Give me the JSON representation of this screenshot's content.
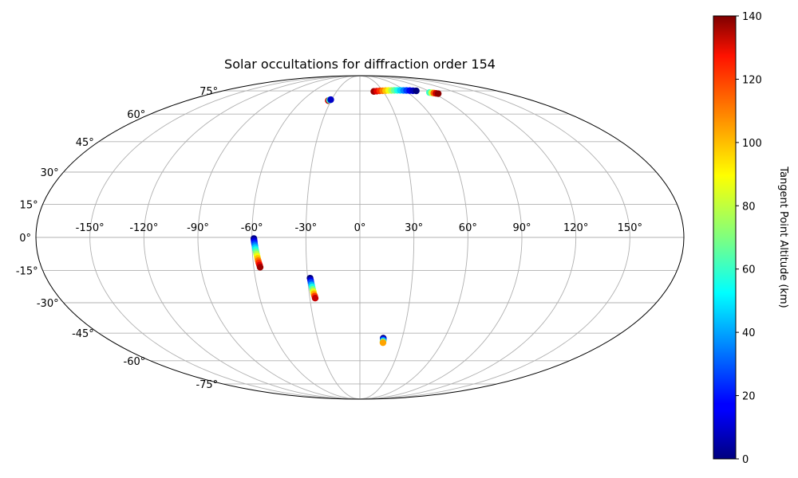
{
  "chart_data": {
    "type": "scatter",
    "projection": "mollweide",
    "title": "Solar occultations for diffraction order 154",
    "x_tick_labels": [
      "-150°",
      "-120°",
      "-90°",
      "-60°",
      "-30°",
      "0°",
      "30°",
      "60°",
      "90°",
      "120°",
      "150°"
    ],
    "x_tick_values": [
      -150,
      -120,
      -90,
      -60,
      -30,
      0,
      30,
      60,
      90,
      120,
      150
    ],
    "y_tick_labels": [
      "-75°",
      "-60°",
      "-45°",
      "-30°",
      "-15°",
      "0°",
      "15°",
      "30°",
      "45°",
      "60°",
      "75°"
    ],
    "y_tick_values": [
      -75,
      -60,
      -45,
      -30,
      -15,
      0,
      15,
      30,
      45,
      60,
      75
    ],
    "grid": true,
    "colorbar": {
      "label": "Tangent Point Altitude (km)",
      "range": [
        0,
        140
      ],
      "ticks": [
        0,
        20,
        40,
        60,
        80,
        100,
        120,
        140
      ],
      "tick_labels": [
        "0",
        "20",
        "40",
        "60",
        "80",
        "100",
        "120",
        "140"
      ],
      "colormap": "jet"
    },
    "series": [
      {
        "lon": [
          -58.9,
          -58.8,
          -58.7,
          -58.6,
          -58.4,
          -58.3,
          -58.1,
          -57.9,
          -57.7,
          -57.5,
          -57.3,
          -57.1,
          -56.9,
          -56.6,
          -56.4
        ],
        "lat": [
          -0.5,
          -1.2,
          -2.0,
          -2.8,
          -3.7,
          -4.6,
          -5.5,
          -6.5,
          -7.5,
          -8.5,
          -9.5,
          -10.5,
          -11.5,
          -12.5,
          -13.5
        ],
        "alt": [
          0,
          8,
          16,
          26,
          36,
          46,
          56,
          66,
          76,
          86,
          96,
          106,
          116,
          126,
          136
        ]
      },
      {
        "lon": [
          -28.6,
          -28.4,
          -28.3,
          -28.1,
          -27.9,
          -27.7,
          -27.5,
          -27.3,
          -27.0,
          -26.8
        ],
        "lat": [
          -18.5,
          -19.5,
          -20.5,
          -21.6,
          -22.6,
          -23.7,
          -24.7,
          -25.8,
          -26.8,
          -27.8
        ],
        "alt": [
          0,
          14,
          28,
          42,
          56,
          70,
          84,
          98,
          114,
          130
        ]
      },
      {
        "lon": [
          16.6,
          16.7,
          16.8,
          16.8,
          16.9
        ],
        "lat": [
          -47.6,
          -48.2,
          -48.8,
          -49.4,
          -50.0
        ],
        "alt": [
          0,
          20,
          40,
          70,
          100
        ]
      },
      {
        "lon": [
          -32.9,
          -31.9,
          -30.9
        ],
        "lat": [
          68.3,
          68.6,
          68.9
        ],
        "alt": [
          130,
          60,
          10
        ]
      },
      {
        "lon": [
          18.0,
          22.0,
          26.0,
          30.0,
          34.0,
          38.0,
          42.0,
          46.0,
          50.0,
          54.0,
          58.0,
          62.0,
          66.0,
          70.0,
          74.0
        ],
        "lat": [
          74.6,
          74.8,
          75.0,
          75.1,
          75.2,
          75.3,
          75.3,
          75.4,
          75.4,
          75.4,
          75.3,
          75.3,
          75.2,
          75.1,
          75.0
        ],
        "alt": [
          136,
          126,
          116,
          106,
          96,
          86,
          76,
          66,
          56,
          46,
          36,
          26,
          16,
          8,
          0
        ]
      },
      {
        "lon": [
          87.0,
          89.0,
          91.0,
          93.0,
          95.0
        ],
        "lat": [
          73.8,
          73.6,
          73.4,
          73.2,
          73.0
        ],
        "alt": [
          60,
          80,
          110,
          130,
          138
        ]
      }
    ]
  }
}
